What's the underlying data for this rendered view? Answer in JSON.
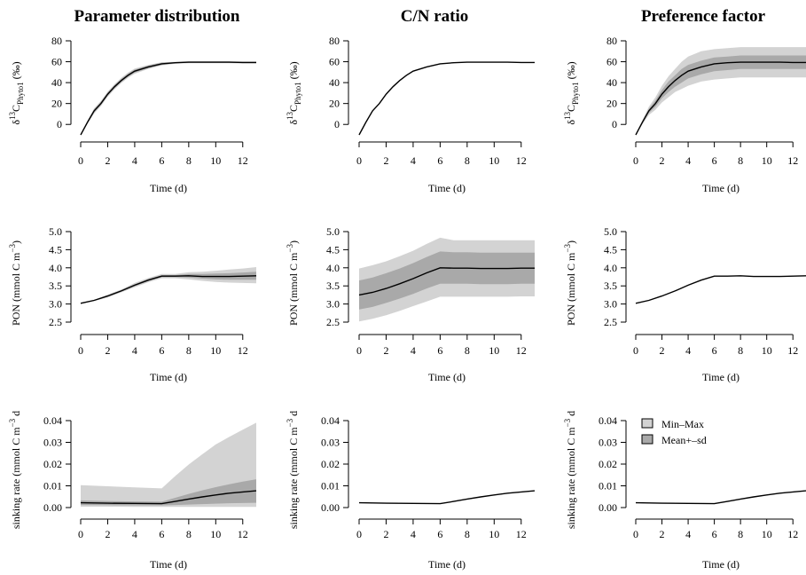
{
  "colors": {
    "minmax": "#d3d3d3",
    "meansd": "#a9a9a9",
    "line": "#000000",
    "axis": "#000000"
  },
  "legend": {
    "placement": "top-left",
    "items": [
      "Min–Max",
      "Mean+–sd"
    ]
  },
  "chart_data": [
    {
      "panel": "p11",
      "column": "Parameter distribution",
      "type": "area",
      "title": "Parameter distribution",
      "xlabel": "Time (d)",
      "ylabel": {
        "main": "δ",
        "sup": "13",
        "sub": "C",
        "subsub": "Phyto1",
        "unit": " (‰)"
      },
      "xlim": [
        0,
        13
      ],
      "ylim": [
        -10,
        82
      ],
      "xticks": [
        0,
        2,
        4,
        6,
        8,
        10,
        12
      ],
      "yticks": [
        0,
        20,
        40,
        60,
        80
      ],
      "x": [
        0,
        0.5,
        1,
        1.5,
        2,
        2.5,
        3,
        3.5,
        4,
        5,
        6,
        7,
        8,
        9,
        10,
        11,
        12,
        13
      ],
      "mean": [
        -10,
        2,
        13,
        20,
        29,
        36,
        42,
        47,
        51,
        55,
        58,
        59,
        59.5,
        59.5,
        59.5,
        59.5,
        59.3,
        59.3
      ],
      "sd_low": [
        -10,
        1,
        11.5,
        18.5,
        27.5,
        34.5,
        40.5,
        45.5,
        49.5,
        53.8,
        57,
        58.5,
        59,
        59,
        59,
        59,
        58.8,
        58.8
      ],
      "sd_high": [
        -10,
        3,
        14.5,
        21.5,
        30.5,
        37.5,
        43.5,
        48.5,
        52.5,
        56.2,
        59,
        59.5,
        60,
        60,
        60,
        60,
        59.8,
        59.8
      ],
      "min": [
        -10,
        0.5,
        10.5,
        17.5,
        26.5,
        33.5,
        39.5,
        44.5,
        48.5,
        53,
        56.5,
        58,
        58.5,
        58.5,
        58.5,
        58.5,
        58.3,
        58.3
      ],
      "max": [
        -10,
        3.5,
        15.5,
        22.5,
        31.5,
        38.5,
        44.5,
        49.5,
        53.5,
        57,
        59.5,
        60,
        60.5,
        60.5,
        60.5,
        60.5,
        60.3,
        60.3
      ],
      "legend": false
    },
    {
      "panel": "p12",
      "column": "C/N ratio",
      "type": "area",
      "title": "C/N ratio",
      "xlabel": "Time (d)",
      "ylabel": {
        "main": "δ",
        "sup": "13",
        "sub": "C",
        "subsub": "Phyto1",
        "unit": " (‰)"
      },
      "xlim": [
        0,
        13
      ],
      "ylim": [
        -10,
        82
      ],
      "xticks": [
        0,
        2,
        4,
        6,
        8,
        10,
        12
      ],
      "yticks": [
        0,
        20,
        40,
        60,
        80
      ],
      "x": [
        0,
        0.5,
        1,
        1.5,
        2,
        2.5,
        3,
        3.5,
        4,
        5,
        6,
        7,
        8,
        9,
        10,
        11,
        12,
        13
      ],
      "mean": [
        -10,
        2,
        13,
        20,
        29,
        36,
        42,
        47,
        51,
        55,
        58,
        59,
        59.5,
        59.5,
        59.5,
        59.5,
        59.3,
        59.3
      ],
      "sd_low": [
        -10,
        2,
        13,
        20,
        29,
        36,
        42,
        47,
        51,
        55,
        58,
        59,
        59.5,
        59.5,
        59.5,
        59.5,
        59.3,
        59.3
      ],
      "sd_high": [
        -10,
        2,
        13,
        20,
        29,
        36,
        42,
        47,
        51,
        55,
        58,
        59,
        59.5,
        59.5,
        59.5,
        59.5,
        59.3,
        59.3
      ],
      "min": [
        -10,
        2,
        13,
        20,
        29,
        36,
        42,
        47,
        51,
        55,
        58,
        59,
        59.5,
        59.5,
        59.5,
        59.5,
        59.3,
        59.3
      ],
      "max": [
        -10,
        2,
        13,
        20,
        29,
        36,
        42,
        47,
        51,
        55,
        58,
        59,
        59.5,
        59.5,
        59.5,
        59.5,
        59.3,
        59.3
      ],
      "legend": false
    },
    {
      "panel": "p13",
      "column": "Preference factor",
      "type": "area",
      "title": "Preference factor",
      "xlabel": "Time (d)",
      "ylabel": {
        "main": "δ",
        "sup": "13",
        "sub": "C",
        "subsub": "Phyto1",
        "unit": " (‰)"
      },
      "xlim": [
        0,
        13
      ],
      "ylim": [
        -10,
        82
      ],
      "xticks": [
        0,
        2,
        4,
        6,
        8,
        10,
        12
      ],
      "yticks": [
        0,
        20,
        40,
        60,
        80
      ],
      "x": [
        0,
        0.5,
        1,
        1.5,
        2,
        2.5,
        3,
        3.5,
        4,
        5,
        6,
        7,
        8,
        9,
        10,
        11,
        12,
        13
      ],
      "mean": [
        -10,
        2,
        13,
        20,
        29,
        36,
        42,
        47,
        51,
        55,
        58,
        59,
        59.5,
        59.5,
        59.5,
        59.5,
        59.3,
        59.3
      ],
      "sd_low": [
        -10,
        1,
        11,
        17,
        25,
        31,
        36,
        40,
        44,
        48,
        51,
        52,
        53,
        53,
        53,
        53,
        53,
        53
      ],
      "sd_high": [
        -10,
        3,
        15,
        23,
        33,
        41,
        47,
        53,
        57,
        61,
        64,
        65,
        66,
        66,
        66,
        66,
        66,
        66
      ],
      "min": [
        -10,
        0,
        9,
        14,
        21,
        26,
        31,
        34,
        37,
        41,
        43,
        44,
        45,
        45,
        45,
        45,
        45,
        45
      ],
      "max": [
        -10,
        4,
        17,
        26,
        37,
        46,
        53,
        60,
        65,
        70,
        72,
        73,
        74,
        74,
        74,
        74,
        74,
        74
      ],
      "legend": false
    },
    {
      "panel": "p21",
      "column": "Parameter distribution",
      "type": "area",
      "xlabel": "Time (d)",
      "ylabel": {
        "main": "PON (mmol C m",
        "sup": "−3",
        "unit": ")"
      },
      "xlim": [
        0,
        13
      ],
      "ylim": [
        2.42,
        5.05
      ],
      "xticks": [
        0,
        2,
        4,
        6,
        8,
        10,
        12
      ],
      "yticks": [
        2.5,
        3.0,
        3.5,
        4.0,
        4.5,
        5.0
      ],
      "x": [
        0,
        1,
        2,
        3,
        4,
        5,
        6,
        7,
        8,
        9,
        10,
        11,
        12,
        13
      ],
      "mean": [
        3.02,
        3.1,
        3.22,
        3.36,
        3.52,
        3.66,
        3.77,
        3.77,
        3.78,
        3.76,
        3.76,
        3.76,
        3.77,
        3.78
      ],
      "sd_low": [
        3.01,
        3.09,
        3.2,
        3.34,
        3.49,
        3.63,
        3.74,
        3.74,
        3.73,
        3.7,
        3.68,
        3.67,
        3.67,
        3.67
      ],
      "sd_high": [
        3.03,
        3.11,
        3.24,
        3.38,
        3.55,
        3.69,
        3.8,
        3.8,
        3.83,
        3.83,
        3.84,
        3.85,
        3.87,
        3.89
      ],
      "min": [
        3.0,
        3.08,
        3.18,
        3.32,
        3.46,
        3.6,
        3.71,
        3.71,
        3.68,
        3.64,
        3.61,
        3.59,
        3.58,
        3.57
      ],
      "max": [
        3.04,
        3.12,
        3.26,
        3.4,
        3.58,
        3.72,
        3.83,
        3.83,
        3.88,
        3.89,
        3.92,
        3.95,
        3.98,
        4.02
      ],
      "legend": false
    },
    {
      "panel": "p22",
      "column": "C/N ratio",
      "type": "area",
      "xlabel": "Time (d)",
      "ylabel": {
        "main": "PON (mmol C m",
        "sup": "−3",
        "unit": ")"
      },
      "xlim": [
        0,
        13
      ],
      "ylim": [
        2.42,
        5.05
      ],
      "xticks": [
        0,
        2,
        4,
        6,
        8,
        10,
        12
      ],
      "yticks": [
        2.5,
        3.0,
        3.5,
        4.0,
        4.5,
        5.0
      ],
      "x": [
        0,
        1,
        2,
        3,
        4,
        5,
        6,
        7,
        8,
        9,
        10,
        11,
        12,
        13
      ],
      "mean": [
        3.25,
        3.32,
        3.43,
        3.56,
        3.7,
        3.86,
        4.0,
        3.99,
        3.99,
        3.98,
        3.98,
        3.98,
        3.99,
        3.99
      ],
      "sd_low": [
        2.85,
        2.92,
        3.03,
        3.15,
        3.28,
        3.43,
        3.56,
        3.56,
        3.56,
        3.55,
        3.55,
        3.55,
        3.56,
        3.56
      ],
      "sd_high": [
        3.65,
        3.73,
        3.85,
        3.98,
        4.13,
        4.3,
        4.45,
        4.43,
        4.43,
        4.42,
        4.42,
        4.42,
        4.42,
        4.42
      ],
      "min": [
        2.52,
        2.59,
        2.69,
        2.81,
        2.94,
        3.07,
        3.2,
        3.2,
        3.2,
        3.2,
        3.2,
        3.2,
        3.21,
        3.21
      ],
      "max": [
        3.98,
        4.07,
        4.18,
        4.32,
        4.47,
        4.66,
        4.83,
        4.76,
        4.76,
        4.76,
        4.76,
        4.76,
        4.76,
        4.76
      ],
      "legend": false
    },
    {
      "panel": "p23",
      "column": "Preference factor",
      "type": "area",
      "xlabel": "Time (d)",
      "ylabel": {
        "main": "PON (mmol C m",
        "sup": "−3",
        "unit": ")"
      },
      "xlim": [
        0,
        13
      ],
      "ylim": [
        2.42,
        5.05
      ],
      "xticks": [
        0,
        2,
        4,
        6,
        8,
        10,
        12
      ],
      "yticks": [
        2.5,
        3.0,
        3.5,
        4.0,
        4.5,
        5.0
      ],
      "x": [
        0,
        1,
        2,
        3,
        4,
        5,
        6,
        7,
        8,
        9,
        10,
        11,
        12,
        13
      ],
      "mean": [
        3.02,
        3.1,
        3.22,
        3.36,
        3.52,
        3.66,
        3.77,
        3.77,
        3.78,
        3.76,
        3.76,
        3.76,
        3.77,
        3.78
      ],
      "sd_low": [
        3.02,
        3.1,
        3.22,
        3.36,
        3.52,
        3.66,
        3.77,
        3.77,
        3.78,
        3.76,
        3.76,
        3.76,
        3.77,
        3.78
      ],
      "sd_high": [
        3.02,
        3.1,
        3.22,
        3.36,
        3.52,
        3.66,
        3.77,
        3.77,
        3.78,
        3.76,
        3.76,
        3.76,
        3.77,
        3.78
      ],
      "min": [
        3.02,
        3.1,
        3.22,
        3.36,
        3.52,
        3.66,
        3.77,
        3.77,
        3.78,
        3.76,
        3.76,
        3.76,
        3.77,
        3.78
      ],
      "max": [
        3.02,
        3.1,
        3.22,
        3.36,
        3.52,
        3.66,
        3.77,
        3.77,
        3.78,
        3.76,
        3.76,
        3.76,
        3.77,
        3.78
      ],
      "legend": false
    },
    {
      "panel": "p31",
      "column": "Parameter distribution",
      "type": "area",
      "xlabel": "Time (d)",
      "ylabel": {
        "main": "sinking rate (mmol C m",
        "sup": "−3",
        "unit": " d"
      },
      "xlim": [
        0,
        13
      ],
      "ylim": [
        -0.001,
        0.041
      ],
      "xticks": [
        0,
        2,
        4,
        6,
        8,
        10,
        12
      ],
      "yticks": [
        0.0,
        0.01,
        0.02,
        0.03,
        0.04
      ],
      "x": [
        0,
        2,
        4,
        6,
        7,
        8,
        9,
        10,
        11,
        12,
        13
      ],
      "mean": [
        0.0022,
        0.002,
        0.0019,
        0.0018,
        0.0028,
        0.0039,
        0.0049,
        0.0058,
        0.0066,
        0.0072,
        0.0077
      ],
      "sd_low": [
        0.0012,
        0.0011,
        0.001,
        0.001,
        0.0012,
        0.0014,
        0.0016,
        0.0018,
        0.002,
        0.0021,
        0.0022
      ],
      "sd_high": [
        0.0033,
        0.003,
        0.0028,
        0.0027,
        0.0045,
        0.0063,
        0.0079,
        0.0094,
        0.0107,
        0.0119,
        0.013
      ],
      "min": [
        0.0004,
        0.0004,
        0.0003,
        0.0003,
        0.0003,
        0.0003,
        0.0003,
        0.0003,
        0.0003,
        0.0003,
        0.0003
      ],
      "max": [
        0.0103,
        0.0098,
        0.0093,
        0.0088,
        0.0145,
        0.0198,
        0.0245,
        0.029,
        0.0325,
        0.0358,
        0.039
      ],
      "legend": false
    },
    {
      "panel": "p32",
      "column": "C/N ratio",
      "type": "area",
      "xlabel": "Time (d)",
      "ylabel": {
        "main": "sinking rate (mmol C m",
        "sup": "−3",
        "unit": " d"
      },
      "xlim": [
        0,
        13
      ],
      "ylim": [
        -0.001,
        0.041
      ],
      "xticks": [
        0,
        2,
        4,
        6,
        8,
        10,
        12
      ],
      "yticks": [
        0.0,
        0.01,
        0.02,
        0.03,
        0.04
      ],
      "x": [
        0,
        2,
        4,
        6,
        7,
        8,
        9,
        10,
        11,
        12,
        13
      ],
      "mean": [
        0.0022,
        0.002,
        0.0019,
        0.0018,
        0.0028,
        0.0039,
        0.0049,
        0.0058,
        0.0066,
        0.0072,
        0.0077
      ],
      "sd_low": [
        0.0022,
        0.002,
        0.0019,
        0.0018,
        0.0028,
        0.0039,
        0.0049,
        0.0058,
        0.0066,
        0.0072,
        0.0077
      ],
      "sd_high": [
        0.0022,
        0.002,
        0.0019,
        0.0018,
        0.0028,
        0.0039,
        0.0049,
        0.0058,
        0.0066,
        0.0072,
        0.0077
      ],
      "min": [
        0.0022,
        0.002,
        0.0019,
        0.0018,
        0.0028,
        0.0039,
        0.0049,
        0.0058,
        0.0066,
        0.0072,
        0.0077
      ],
      "max": [
        0.0022,
        0.002,
        0.0019,
        0.0018,
        0.0028,
        0.0039,
        0.0049,
        0.0058,
        0.0066,
        0.0072,
        0.0077
      ],
      "legend": false
    },
    {
      "panel": "p33",
      "column": "Preference factor",
      "type": "area",
      "xlabel": "Time (d)",
      "ylabel": {
        "main": "sinking rate (mmol C m",
        "sup": "−3",
        "unit": " d"
      },
      "xlim": [
        0,
        13
      ],
      "ylim": [
        -0.001,
        0.041
      ],
      "xticks": [
        0,
        2,
        4,
        6,
        8,
        10,
        12
      ],
      "yticks": [
        0.0,
        0.01,
        0.02,
        0.03,
        0.04
      ],
      "x": [
        0,
        2,
        4,
        6,
        7,
        8,
        9,
        10,
        11,
        12,
        13
      ],
      "mean": [
        0.0022,
        0.002,
        0.0019,
        0.0018,
        0.0028,
        0.0039,
        0.0049,
        0.0058,
        0.0066,
        0.0072,
        0.0077
      ],
      "sd_low": [
        0.0022,
        0.002,
        0.0019,
        0.0018,
        0.0028,
        0.0039,
        0.0049,
        0.0058,
        0.0066,
        0.0072,
        0.0077
      ],
      "sd_high": [
        0.0022,
        0.002,
        0.0019,
        0.0018,
        0.0028,
        0.0039,
        0.0049,
        0.0058,
        0.0066,
        0.0072,
        0.0077
      ],
      "min": [
        0.0022,
        0.002,
        0.0019,
        0.0018,
        0.0028,
        0.0039,
        0.0049,
        0.0058,
        0.0066,
        0.0072,
        0.0077
      ],
      "max": [
        0.0022,
        0.002,
        0.0019,
        0.0018,
        0.0028,
        0.0039,
        0.0049,
        0.0058,
        0.0066,
        0.0072,
        0.0077
      ],
      "legend": true
    }
  ]
}
